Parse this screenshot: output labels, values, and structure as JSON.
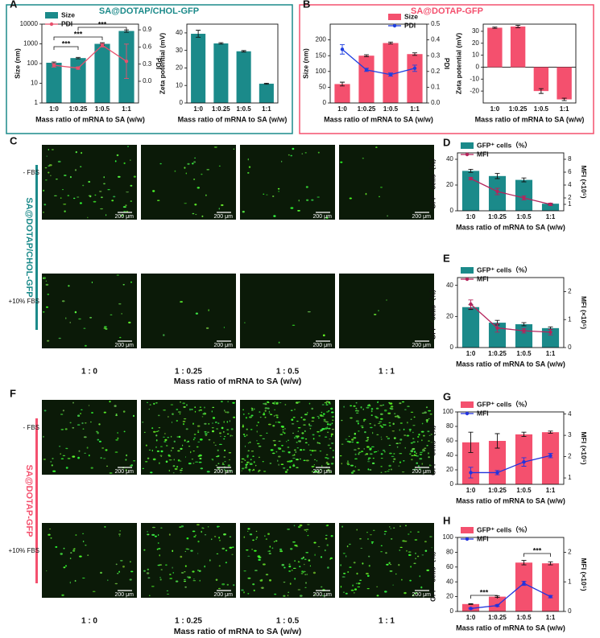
{
  "figure": {
    "panels": [
      "A",
      "B",
      "C",
      "D",
      "E",
      "F",
      "G",
      "H"
    ],
    "panel_titles": [
      "SA@DOTAP/CHOL-GFP",
      "SA@DOTAP-GFP"
    ],
    "micrographs": [
      {
        "label": "SA@DOTAP/CHOL-GFP",
        "rows": [
          "- FBS",
          "+10% FBS"
        ],
        "columns": [
          "1 : 0",
          "1 : 0.25",
          "1 : 0.5",
          "1 : 1"
        ],
        "xlabel": "Mass ratio of mRNA to SA (w/w)",
        "scale_bar": "200 μm"
      },
      {
        "label": "SA@DOTAP-GFP",
        "rows": [
          "- FBS",
          "+10% FBS"
        ],
        "columns": [
          "1 : 0",
          "1 : 0.25",
          "1 : 0.5",
          "1 : 1"
        ],
        "xlabel": "Mass ratio of mRNA to SA (w/w)",
        "scale_bar": "200 μm"
      }
    ]
  },
  "chart_data": [
    {
      "type": "bar",
      "log_y": true,
      "categories": [
        "1:0",
        "1:0.25",
        "1:0.5",
        "1:1"
      ],
      "xlabel": "Mass ratio of mRNA to SA (w/w)",
      "ylabel": "Size (nm)",
      "y2label": "PDI",
      "series": [
        {
          "name": "Size",
          "color": "#1b8a8a",
          "values": [
            110,
            190,
            1000,
            4500
          ],
          "errors": [
            10,
            15,
            150,
            600
          ]
        },
        {
          "name": "PDI",
          "type": "line",
          "axis": "y2",
          "color": "#e8506c",
          "values": [
            0.28,
            0.23,
            0.63,
            0.35
          ],
          "errors": [
            0.03,
            0.02,
            0.03,
            0.3
          ]
        }
      ],
      "ylim": [
        1,
        10000
      ],
      "yticks": [
        1,
        10,
        100,
        1000,
        10000
      ],
      "y2lim": [
        -0.38,
        1.0
      ],
      "y2ticks": [
        {
          "value": 0,
          "label": "0.0"
        },
        0.3,
        0.6,
        0.9
      ],
      "annotations": [
        "***",
        "***",
        "***"
      ]
    },
    {
      "type": "bar",
      "categories": [
        "1:0",
        "1:0.25",
        "1:0.5",
        "1:1"
      ],
      "xlabel": "Mass ratio of mRNA to SA (w/w)",
      "ylabel": "Zeta potential (mV)",
      "series": [
        {
          "color": "#1b8a8a",
          "values": [
            39.5,
            34,
            29.5,
            11
          ],
          "errors": [
            2,
            0.4,
            0.4,
            0.3
          ]
        }
      ],
      "ylim": [
        0,
        45
      ],
      "yticks": [
        0,
        10,
        20,
        30,
        40
      ]
    },
    {
      "type": "bar",
      "categories": [
        "1:0",
        "1:0.25",
        "1:0.5",
        "1:1"
      ],
      "xlabel": "Mass ratio of mRNA to SA (w/w)",
      "ylabel": "Size (nm)",
      "y2label": "PDI",
      "series": [
        {
          "name": "Size",
          "color": "#f4506e",
          "values": [
            60,
            150,
            190,
            155
          ],
          "errors": [
            6,
            3,
            3,
            4
          ]
        },
        {
          "name": "PDI",
          "type": "line",
          "axis": "y2",
          "color": "#1f3fe0",
          "values": [
            0.34,
            0.21,
            0.18,
            0.22
          ],
          "errors": [
            0.03,
            0.01,
            0.01,
            0.02
          ]
        }
      ],
      "ylim": [
        0,
        250
      ],
      "yticks": [
        0,
        50,
        100,
        150,
        200
      ],
      "y2lim": [
        0,
        0.5
      ],
      "y2ticks": [
        {
          "value": 0,
          "label": "0.0"
        },
        0.1,
        0.2,
        0.3,
        0.4,
        0.5
      ]
    },
    {
      "type": "bar",
      "categories": [
        "1:0",
        "1:0.25",
        "1:0.5",
        "1:1"
      ],
      "xlabel": "Mass ratio of mRNA to SA (w/w)",
      "ylabel": "Zeta potential (mV)",
      "series": [
        {
          "color": "#f4506e",
          "values": [
            33,
            34,
            -20,
            -27
          ],
          "errors": [
            0.5,
            1,
            2,
            1
          ]
        }
      ],
      "ylim": [
        -30,
        36
      ],
      "yticks": [
        -20,
        -10,
        0,
        10,
        20,
        30
      ]
    },
    {
      "type": "bar",
      "categories": [
        "1:0",
        "1:0.25",
        "1:0.5",
        "1:1"
      ],
      "xlabel": "Mass ratio of mRNA to SA (w/w)",
      "ylabel": "GFP⁺ cells（%）",
      "y2label": "MFI (×10⁵)",
      "series": [
        {
          "name": "GFP⁺ cells（%）",
          "color": "#1b8a8a",
          "values": [
            31,
            27,
            24,
            5.5
          ],
          "errors": [
            1.2,
            2,
            1.5,
            0.5
          ]
        },
        {
          "name": "MFI",
          "type": "line",
          "axis": "y2",
          "color": "#b5245c",
          "values": [
            5.0,
            3.0,
            2.0,
            1.0
          ],
          "errors": [
            0.2,
            0.5,
            0.3,
            0.2
          ]
        }
      ],
      "ylim": [
        0,
        45
      ],
      "yticks": [
        0,
        20,
        40
      ],
      "y2lim": [
        0,
        9
      ],
      "y2ticks": [
        1,
        2,
        4,
        6,
        8
      ]
    },
    {
      "type": "bar",
      "categories": [
        "1:0",
        "1:0.25",
        "1:0.5",
        "1:1"
      ],
      "xlabel": "Mass ratio of mRNA to SA (w/w)",
      "ylabel": "GFP⁺ cells（%）",
      "y2label": "MFI (×10⁵)",
      "series": [
        {
          "name": "GFP⁺ cells（%）",
          "color": "#1b8a8a",
          "values": [
            26,
            16,
            15,
            12.5
          ],
          "errors": [
            1.5,
            1.5,
            1,
            0.8
          ]
        },
        {
          "name": "MFI",
          "type": "line",
          "axis": "y2",
          "color": "#b5245c",
          "values": [
            1.55,
            0.7,
            0.6,
            0.55
          ],
          "errors": [
            0.15,
            0.15,
            0.08,
            0.1
          ]
        }
      ],
      "ylim": [
        0,
        45
      ],
      "yticks": [
        0,
        20,
        40
      ],
      "y2lim": [
        0,
        2.5
      ],
      "y2ticks": [
        0,
        1,
        2
      ]
    },
    {
      "type": "bar",
      "categories": [
        "1:0",
        "1:0.25",
        "1:0.5",
        "1:1"
      ],
      "xlabel": "Mass ratio of mRNA to SA (w/w)",
      "ylabel": "GFP⁺ cells（%）",
      "y2label": "MFI (×10⁵)",
      "series": [
        {
          "name": "GFP⁺ cells（%）",
          "color": "#f4506e",
          "values": [
            58,
            60,
            69,
            72
          ],
          "errors": [
            14,
            10,
            3,
            1.5
          ]
        },
        {
          "name": "MFI",
          "type": "line",
          "axis": "y2",
          "color": "#2233dd",
          "values": [
            1.25,
            1.25,
            1.75,
            2.05
          ],
          "errors": [
            0.25,
            0.1,
            0.2,
            0.1
          ]
        }
      ],
      "ylim": [
        0,
        100
      ],
      "yticks": [
        0,
        20,
        40,
        60,
        80,
        100
      ],
      "y2lim": [
        0.7,
        4.1
      ],
      "y2ticks": [
        1,
        2,
        3,
        4
      ]
    },
    {
      "type": "bar",
      "categories": [
        "1:0",
        "1:0.25",
        "1:0.5",
        "1:1"
      ],
      "xlabel": "Mass ratio of mRNA to SA (w/w)",
      "ylabel": "GFP⁺ cells（%）",
      "y2label": "MFI (×10⁵)",
      "series": [
        {
          "name": "GFP⁺ cells（%）",
          "color": "#f4506e",
          "values": [
            10,
            20,
            66,
            65
          ],
          "errors": [
            0.5,
            1,
            3,
            2
          ]
        },
        {
          "name": "MFI",
          "type": "line",
          "axis": "y2",
          "color": "#2233dd",
          "values": [
            0.1,
            0.2,
            0.95,
            0.5
          ],
          "errors": [
            0.02,
            0.03,
            0.07,
            0.04
          ]
        }
      ],
      "ylim": [
        0,
        100
      ],
      "yticks": [
        0,
        20,
        40,
        60,
        80,
        100
      ],
      "y2lim": [
        0,
        2.5
      ],
      "y2ticks": [
        0,
        1,
        2
      ],
      "annotations": [
        "***",
        "***"
      ]
    }
  ]
}
